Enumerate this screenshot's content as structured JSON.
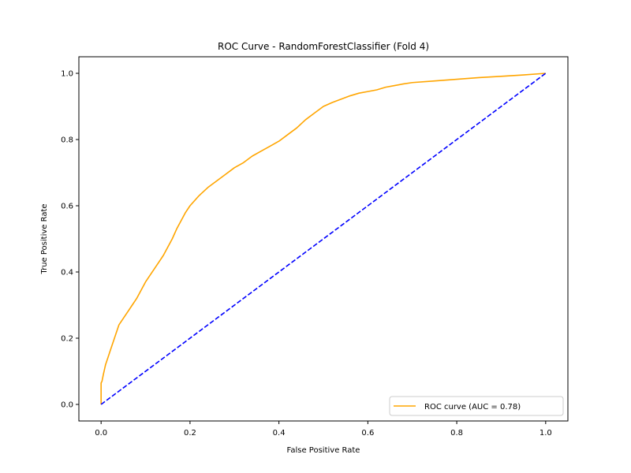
{
  "chart_data": {
    "type": "line",
    "title": "ROC Curve - RandomForestClassifier (Fold 4)",
    "xlabel": "False Positive Rate",
    "ylabel": "True Positive Rate",
    "xlim": [
      -0.05,
      1.05
    ],
    "ylim": [
      -0.05,
      1.05
    ],
    "xticks": [
      "0.0",
      "0.2",
      "0.4",
      "0.6",
      "0.8",
      "1.0"
    ],
    "yticks": [
      "0.0",
      "0.2",
      "0.4",
      "0.6",
      "0.8",
      "1.0"
    ],
    "grid": false,
    "legend_position": "lower-right",
    "series": [
      {
        "name": "ROC curve (AUC = 0.78)",
        "color": "#ffa500",
        "style": "solid",
        "x": [
          0.0,
          0.0,
          0.002,
          0.005,
          0.01,
          0.015,
          0.02,
          0.025,
          0.03,
          0.035,
          0.04,
          0.05,
          0.06,
          0.07,
          0.08,
          0.09,
          0.1,
          0.11,
          0.12,
          0.13,
          0.14,
          0.15,
          0.16,
          0.17,
          0.18,
          0.19,
          0.2,
          0.22,
          0.24,
          0.26,
          0.28,
          0.3,
          0.32,
          0.34,
          0.36,
          0.38,
          0.4,
          0.42,
          0.44,
          0.46,
          0.48,
          0.5,
          0.52,
          0.54,
          0.56,
          0.58,
          0.6,
          0.62,
          0.64,
          0.66,
          0.68,
          0.7,
          0.75,
          0.8,
          0.85,
          0.9,
          0.95,
          1.0
        ],
        "y": [
          0.0,
          0.065,
          0.07,
          0.09,
          0.12,
          0.14,
          0.16,
          0.18,
          0.2,
          0.22,
          0.24,
          0.26,
          0.28,
          0.3,
          0.32,
          0.345,
          0.37,
          0.39,
          0.41,
          0.43,
          0.45,
          0.475,
          0.5,
          0.53,
          0.555,
          0.58,
          0.6,
          0.63,
          0.655,
          0.675,
          0.695,
          0.715,
          0.73,
          0.75,
          0.765,
          0.78,
          0.795,
          0.815,
          0.835,
          0.86,
          0.88,
          0.9,
          0.912,
          0.922,
          0.932,
          0.94,
          0.945,
          0.95,
          0.958,
          0.963,
          0.968,
          0.972,
          0.977,
          0.982,
          0.987,
          0.991,
          0.995,
          1.0
        ]
      },
      {
        "name": "",
        "color": "#0000ff",
        "style": "dashed",
        "x": [
          0.0,
          1.0
        ],
        "y": [
          0.0,
          1.0
        ]
      }
    ]
  }
}
